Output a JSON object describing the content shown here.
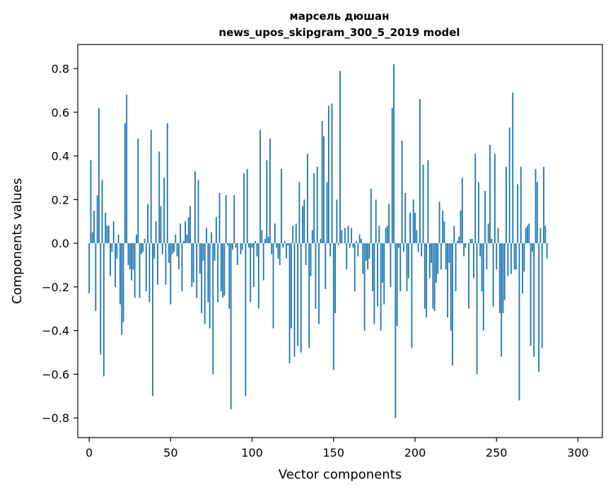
{
  "chart_data": {
    "type": "bar",
    "title": "марсель дюшан\nnews_upos_skipgram_300_5_2019 model",
    "xlabel": "Vector components",
    "ylabel": "Components values",
    "xlim": [
      -7,
      315
    ],
    "ylim": [
      -0.89,
      0.91
    ],
    "xticks": [
      0,
      50,
      100,
      150,
      200,
      250,
      300
    ],
    "xtick_labels": [
      "0",
      "50",
      "100",
      "150",
      "200",
      "250",
      "300"
    ],
    "yticks": [
      -0.8,
      -0.6,
      -0.4,
      -0.2,
      0.0,
      0.2,
      0.4,
      0.6,
      0.8
    ],
    "ytick_labels": [
      "−0.8",
      "−0.6",
      "−0.4",
      "−0.2",
      "0.0",
      "0.2",
      "0.4",
      "0.6",
      "0.8"
    ],
    "grid": false,
    "bar_color": "#1f77b4",
    "values": [
      -0.23,
      0.38,
      0.05,
      0.15,
      -0.31,
      0.22,
      0.62,
      -0.51,
      0.29,
      -0.61,
      0.14,
      0.08,
      0.08,
      -0.15,
      -0.04,
      0.1,
      -0.2,
      -0.07,
      0.04,
      -0.28,
      -0.42,
      -0.36,
      0.55,
      0.68,
      -0.1,
      -0.12,
      -0.17,
      -0.12,
      -0.25,
      0.04,
      0.48,
      -0.25,
      -0.05,
      -0.04,
      0.02,
      -0.22,
      0.18,
      -0.27,
      0.52,
      -0.7,
      -0.07,
      0.1,
      -0.19,
      0.42,
      0.17,
      -0.05,
      0.3,
      -0.19,
      0.55,
      -0.09,
      -0.28,
      -0.05,
      -0.04,
      0.04,
      -0.06,
      -0.12,
      0.09,
      -0.22,
      0.01,
      0.1,
      0.04,
      0.12,
      0.17,
      -0.2,
      -0.18,
      0.33,
      -0.25,
      0.29,
      -0.14,
      -0.32,
      -0.08,
      -0.37,
      0.07,
      -0.27,
      -0.39,
      0.05,
      -0.6,
      -0.08,
      0.12,
      -0.27,
      0.23,
      -0.22,
      -0.25,
      -0.24,
      0.22,
      -0.01,
      -0.3,
      -0.76,
      -0.03,
      0.22,
      -0.02,
      -0.1,
      0.0,
      -0.05,
      -0.03,
      0.32,
      -0.7,
      0.34,
      -0.02,
      -0.27,
      -0.02,
      -0.2,
      0.01,
      -0.06,
      -0.3,
      0.52,
      0.06,
      -0.17,
      0.02,
      0.38,
      0.03,
      0.48,
      -0.05,
      -0.39,
      0.09,
      -0.02,
      -0.07,
      -0.1,
      0.34,
      -0.02,
      0.01,
      -0.07,
      -0.01,
      -0.55,
      -0.39,
      0.08,
      -0.52,
      0.09,
      -0.47,
      0.28,
      -0.5,
      0.17,
      0.2,
      -0.1,
      0.41,
      -0.48,
      -0.15,
      0.06,
      0.32,
      -0.3,
      0.35,
      -0.37,
      0.02,
      0.56,
      0.49,
      -0.21,
      0.28,
      0.63,
      -0.06,
      0.64,
      -0.58,
      -0.32,
      0.2,
      -0.01,
      0.79,
      0.06,
      0.0,
      0.07,
      -0.12,
      0.08,
      -0.02,
      0.07,
      -0.02,
      -0.22,
      0.01,
      -0.06,
      0.04,
      0.02,
      -0.14,
      -0.4,
      -0.08,
      -0.12,
      -0.07,
      0.25,
      -0.22,
      -0.37,
      0.2,
      -0.29,
      0.08,
      -0.4,
      -0.18,
      -0.28,
      0.07,
      0.08,
      0.18,
      -0.2,
      0.62,
      0.82,
      -0.8,
      -0.38,
      -0.02,
      -0.22,
      0.47,
      -0.04,
      0.23,
      -0.22,
      -0.16,
      0.14,
      -0.48,
      0.2,
      0.14,
      0.06,
      -0.04,
      0.66,
      -0.06,
      0.36,
      -0.3,
      -0.34,
      0.38,
      -0.16,
      -0.09,
      -0.3,
      -0.31,
      -0.18,
      -0.14,
      0.19,
      -0.12,
      0.15,
      0.1,
      -0.12,
      -0.34,
      -0.09,
      -0.4,
      -0.56,
      0.08,
      -0.22,
      0.01,
      0.03,
      0.15,
      0.3,
      -0.06,
      -0.02,
      0.0,
      -0.3,
      0.02,
      0.02,
      -0.16,
      0.41,
      -0.6,
      0.28,
      -0.06,
      -0.22,
      -0.4,
      0.24,
      -0.12,
      0.09,
      0.45,
      0.02,
      -0.29,
      0.41,
      -0.12,
      0.07,
      -0.32,
      -0.52,
      -0.32,
      -0.26,
      0.35,
      -0.15,
      0.53,
      -0.14,
      0.69,
      -0.12,
      -0.12,
      0.27,
      -0.72,
      0.35,
      -0.23,
      -0.13,
      0.07,
      0.08,
      0.09,
      -0.47,
      -0.04,
      -0.52,
      0.34,
      0.28,
      -0.59,
      0.07,
      -0.48,
      0.35,
      0.08,
      -0.07
    ]
  }
}
